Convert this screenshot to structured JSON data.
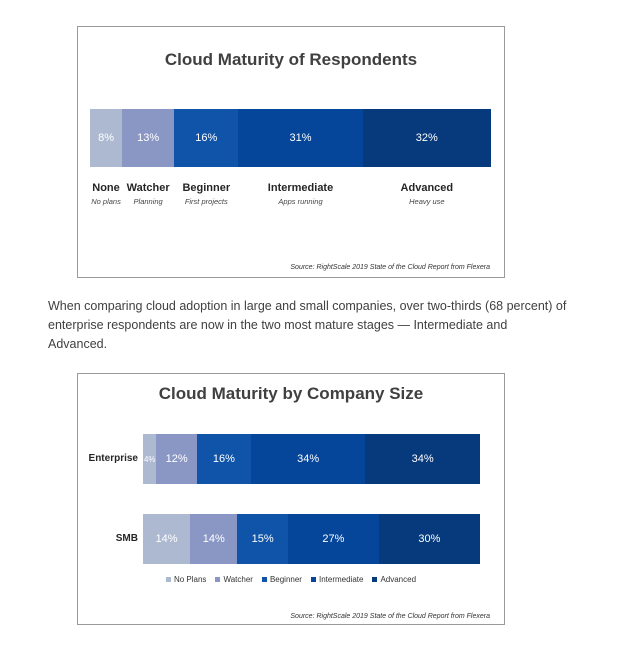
{
  "colors": {
    "none": "#adb9d1",
    "watcher": "#8a97c4",
    "beginner": "#0f54a8",
    "intermediate": "#05459a",
    "advanced": "#073a7c"
  },
  "paragraph": "When comparing cloud adoption in large and small companies, over two-thirds (68 percent) of enterprise respondents are now in the two most mature stages — Intermediate and Advanced.",
  "chart_data": [
    {
      "type": "bar",
      "orientation": "horizontal-stacked",
      "title": "Cloud Maturity of Respondents",
      "categories": [
        "None",
        "Watcher",
        "Beginner",
        "Intermediate",
        "Advanced"
      ],
      "subtitles": [
        "No plans",
        "Planning",
        "First projects",
        "Apps running",
        "Heavy use"
      ],
      "values": [
        8,
        13,
        16,
        31,
        32
      ],
      "value_labels": [
        "8%",
        "13%",
        "16%",
        "31%",
        "32%"
      ],
      "color_keys": [
        "none",
        "watcher",
        "beginner",
        "intermediate",
        "advanced"
      ],
      "source": "Source: RightScale 2019 State of the Cloud Report from Flexera"
    },
    {
      "type": "bar",
      "orientation": "horizontal-stacked",
      "title": "Cloud Maturity by Company Size",
      "categories": [
        "Enterprise",
        "SMB"
      ],
      "series": [
        {
          "name": "No Plans",
          "values": [
            4,
            14
          ],
          "labels": [
            "4%",
            "14%"
          ],
          "color_key": "none"
        },
        {
          "name": "Watcher",
          "values": [
            12,
            14
          ],
          "labels": [
            "12%",
            "14%"
          ],
          "color_key": "watcher"
        },
        {
          "name": "Beginner",
          "values": [
            16,
            15
          ],
          "labels": [
            "16%",
            "15%"
          ],
          "color_key": "beginner"
        },
        {
          "name": "Intermediate",
          "values": [
            34,
            27
          ],
          "labels": [
            "34%",
            "27%"
          ],
          "color_key": "intermediate"
        },
        {
          "name": "Advanced",
          "values": [
            34,
            30
          ],
          "labels": [
            "34%",
            "30%"
          ],
          "color_key": "advanced"
        }
      ],
      "legend_position": "bottom",
      "source": "Source: RightScale 2019 State of the Cloud Report from Flexera"
    }
  ]
}
